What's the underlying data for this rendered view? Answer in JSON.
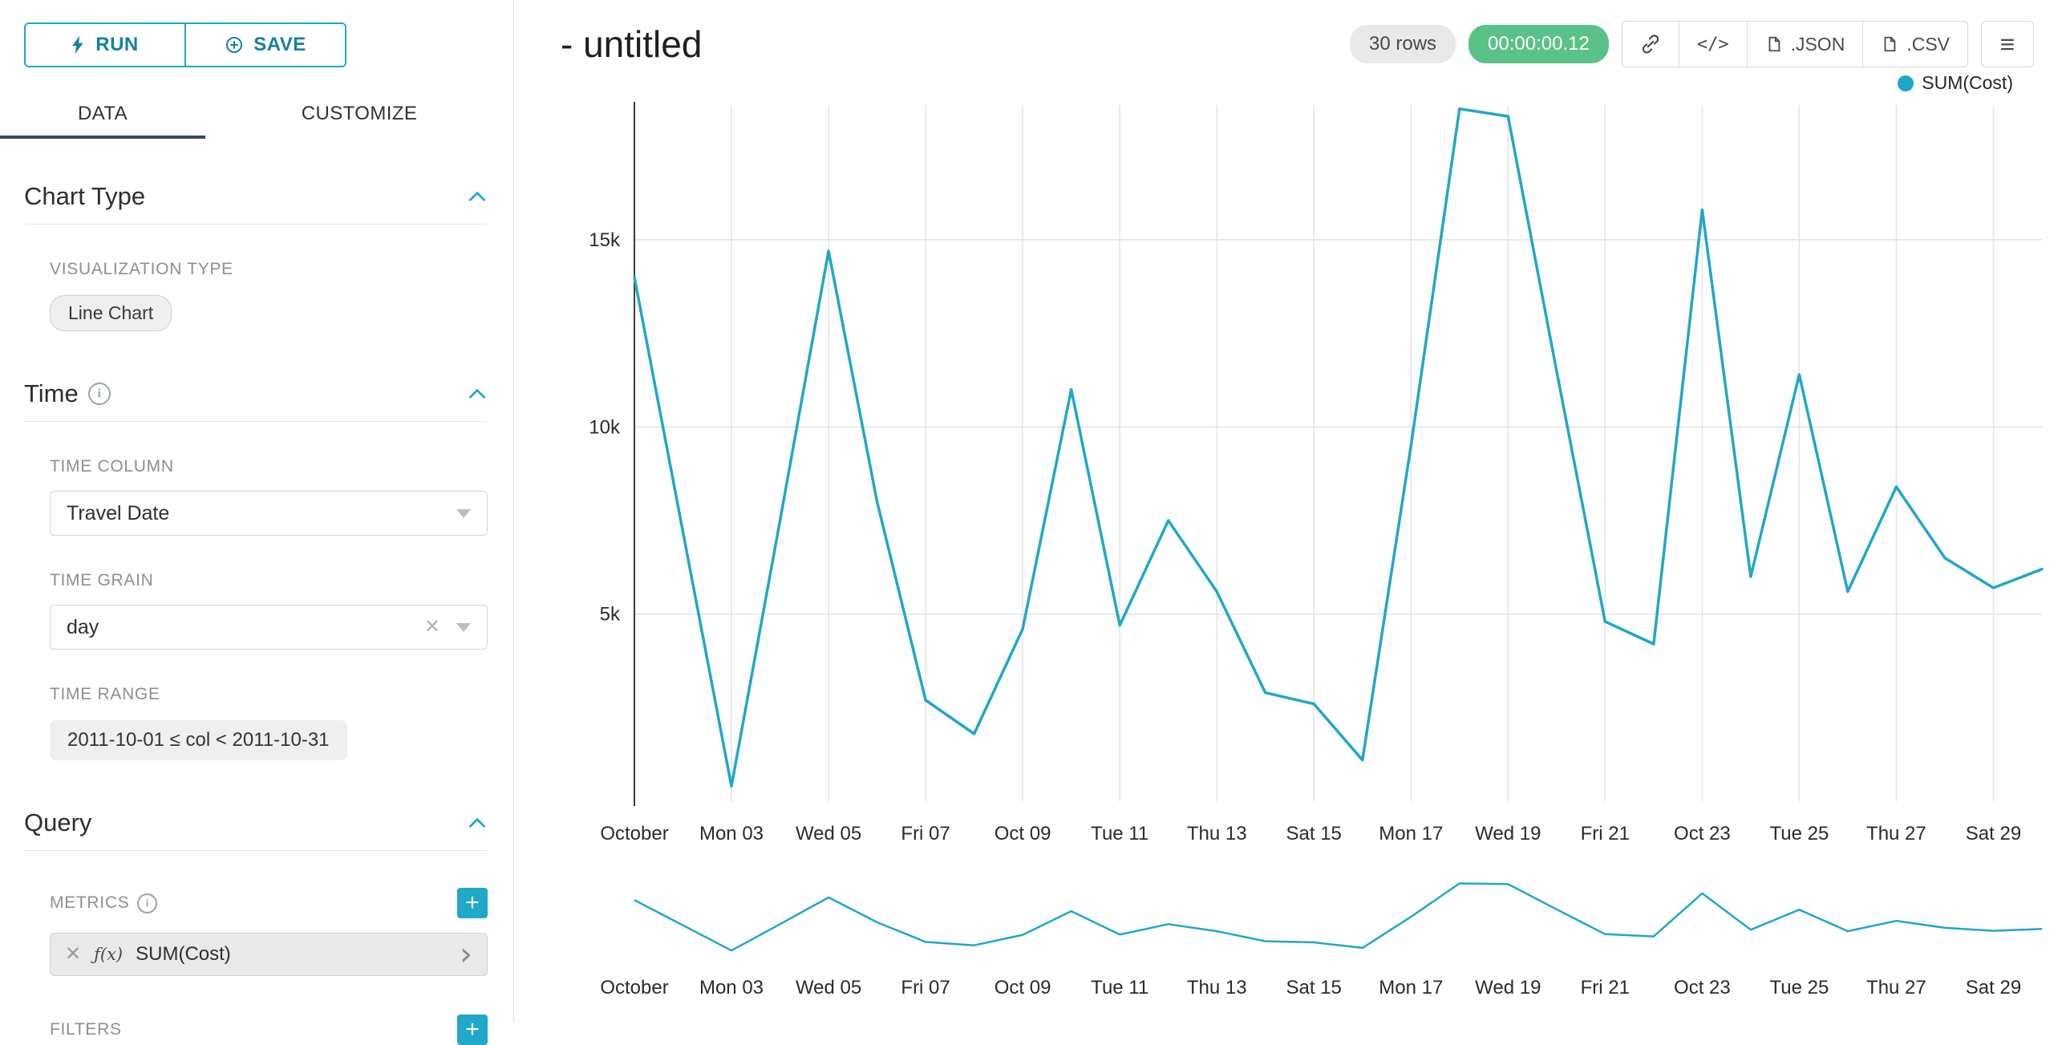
{
  "colors": {
    "accent": "#20a7c9",
    "success": "#5ac189",
    "series": "#20a7c9"
  },
  "toolbar": {
    "run_label": "RUN",
    "save_label": "SAVE"
  },
  "tabs": {
    "data": "DATA",
    "customize": "CUSTOMIZE"
  },
  "icons": {
    "code": "</>",
    "menu": "≡",
    "clear": "✕",
    "metric_clear": "✕",
    "metric_caret": "›",
    "plus": "+",
    "fx": "ƒ(x)",
    "info": "i"
  },
  "panels": {
    "chart_type": {
      "title": "Chart Type",
      "viz_type_label": "VISUALIZATION TYPE",
      "viz_type_value": "Line Chart"
    },
    "time": {
      "title": "Time",
      "time_column_label": "TIME COLUMN",
      "time_column_value": "Travel Date",
      "time_grain_label": "TIME GRAIN",
      "time_grain_value": "day",
      "time_range_label": "TIME RANGE",
      "time_range_value": "2011-10-01 ≤ col < 2011-10-31"
    },
    "query": {
      "title": "Query",
      "metrics_label": "METRICS",
      "metric_value": "SUM(Cost)",
      "filters_label": "FILTERS"
    }
  },
  "header": {
    "title": "- untitled",
    "rows_badge": "30 rows",
    "timer_badge": "00:00:00.12",
    "export_json": ".JSON",
    "export_csv": ".CSV"
  },
  "legend": {
    "label": "SUM(Cost)",
    "color": "#20a7c9"
  },
  "chart_data": {
    "type": "line",
    "title": "- untitled",
    "xlabel": "",
    "ylabel": "",
    "grid": true,
    "legend_position": "top-right",
    "ylim": [
      0,
      18600
    ],
    "x": [
      "2011-10-01",
      "2011-10-02",
      "2011-10-03",
      "2011-10-04",
      "2011-10-05",
      "2011-10-06",
      "2011-10-07",
      "2011-10-08",
      "2011-10-09",
      "2011-10-10",
      "2011-10-11",
      "2011-10-12",
      "2011-10-13",
      "2011-10-14",
      "2011-10-15",
      "2011-10-16",
      "2011-10-17",
      "2011-10-18",
      "2011-10-19",
      "2011-10-20",
      "2011-10-21",
      "2011-10-22",
      "2011-10-23",
      "2011-10-24",
      "2011-10-25",
      "2011-10-26",
      "2011-10-27",
      "2011-10-28",
      "2011-10-29",
      "2011-10-30"
    ],
    "series": [
      {
        "name": "SUM(Cost)",
        "color": "#20a7c9",
        "values": [
          14000,
          7200,
          400,
          7500,
          14700,
          8000,
          2700,
          1800,
          4600,
          11000,
          4700,
          7500,
          5600,
          2900,
          2600,
          1100,
          9500,
          18500,
          18300,
          11500,
          4800,
          4200,
          15800,
          6000,
          11400,
          5600,
          8400,
          6500,
          5700,
          6200
        ]
      }
    ],
    "tick_indices": [
      0,
      2,
      4,
      6,
      8,
      10,
      12,
      14,
      16,
      18,
      20,
      22,
      24,
      26,
      28
    ],
    "tick_labels": [
      "October",
      "Mon 03",
      "Wed 05",
      "Fri 07",
      "Oct 09",
      "Tue 11",
      "Thu 13",
      "Sat 15",
      "Mon 17",
      "Wed 19",
      "Fri 21",
      "Oct 23",
      "Tue 25",
      "Thu 27",
      "Sat 29"
    ],
    "yticks": [
      {
        "v": 5000,
        "label": "5k"
      },
      {
        "v": 10000,
        "label": "10k"
      },
      {
        "v": 15000,
        "label": "15k"
      }
    ]
  }
}
